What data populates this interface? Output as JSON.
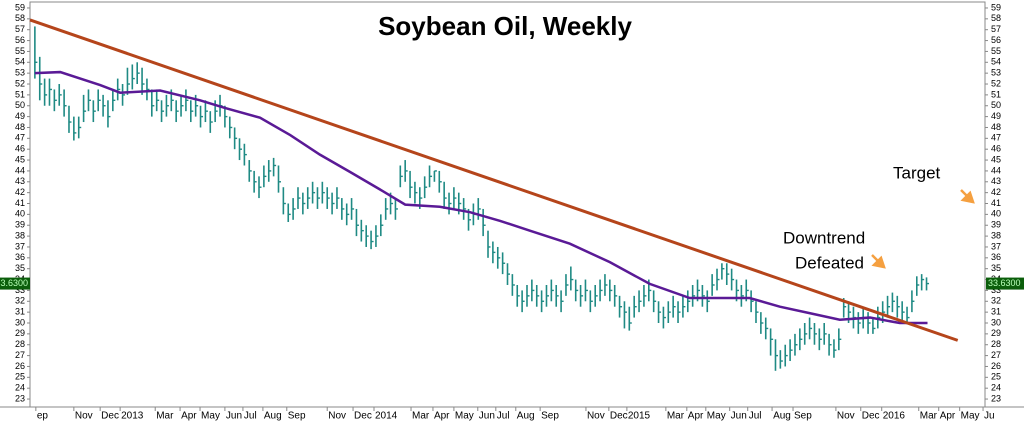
{
  "chart_data": {
    "type": "ohlc",
    "title": "Soybean Oil, Weekly",
    "annotations": [
      "Target",
      "Downtrend",
      "Defeated"
    ],
    "ylim": [
      22.36,
      59.55
    ],
    "yticks": [
      23,
      24,
      25,
      26,
      27,
      28,
      29,
      30,
      31,
      32,
      33,
      34,
      35,
      36,
      37,
      38,
      39,
      40,
      41,
      42,
      43,
      44,
      45,
      46,
      47,
      48,
      49,
      50,
      51,
      52,
      53,
      54,
      55,
      56,
      57,
      58,
      59
    ],
    "xlim": [
      -1,
      195
    ],
    "xticks": [
      {
        "value": 0.2,
        "label": "ep"
      },
      {
        "value": 8.0,
        "label": "Nov"
      },
      {
        "value": 13.4,
        "label": "Dec"
      },
      {
        "value": 17.5,
        "label": "2013"
      },
      {
        "value": 24.7,
        "label": "Mar"
      },
      {
        "value": 29.8,
        "label": "Apr"
      },
      {
        "value": 33.9,
        "label": "May"
      },
      {
        "value": 39.0,
        "label": "Jun"
      },
      {
        "value": 42.7,
        "label": "Jul"
      },
      {
        "value": 46.8,
        "label": "Aug"
      },
      {
        "value": 51.7,
        "label": "Sep"
      },
      {
        "value": 60.0,
        "label": "Nov"
      },
      {
        "value": 65.3,
        "label": "Dec"
      },
      {
        "value": 69.6,
        "label": "2014"
      },
      {
        "value": 77.2,
        "label": "Mar"
      },
      {
        "value": 81.7,
        "label": "Apr"
      },
      {
        "value": 86.0,
        "label": "May"
      },
      {
        "value": 90.9,
        "label": "Jun"
      },
      {
        "value": 94.6,
        "label": "Jul"
      },
      {
        "value": 98.7,
        "label": "Aug"
      },
      {
        "value": 103.7,
        "label": "Sep"
      },
      {
        "value": 113.1,
        "label": "Nov"
      },
      {
        "value": 117.8,
        "label": "Dec"
      },
      {
        "value": 121.5,
        "label": "2015"
      },
      {
        "value": 129.5,
        "label": "Mar"
      },
      {
        "value": 133.8,
        "label": "Apr"
      },
      {
        "value": 137.7,
        "label": "May"
      },
      {
        "value": 142.6,
        "label": "Jun"
      },
      {
        "value": 146.3,
        "label": "Jul"
      },
      {
        "value": 151.3,
        "label": "Aug"
      },
      {
        "value": 155.6,
        "label": "Sep"
      },
      {
        "value": 164.4,
        "label": "Nov"
      },
      {
        "value": 169.5,
        "label": "Dec"
      },
      {
        "value": 173.8,
        "label": "2016"
      },
      {
        "value": 181.4,
        "label": "Mar"
      },
      {
        "value": 185.5,
        "label": "Apr"
      },
      {
        "value": 189.8,
        "label": "May"
      },
      {
        "value": 194.6,
        "label": "Ju"
      }
    ],
    "bars": {
      "color": "#1f8a84",
      "high": [
        57.3,
        54.5,
        52.5,
        52.5,
        51.5,
        52.0,
        51.5,
        50.0,
        49.0,
        49.0,
        51.0,
        51.5,
        50.5,
        51.5,
        51.0,
        50.5,
        51.5,
        52.5,
        52.0,
        53.5,
        53.8,
        54.0,
        53.5,
        52.5,
        51.5,
        51.5,
        50.5,
        51.0,
        51.5,
        50.5,
        51.0,
        51.5,
        50.5,
        51.0,
        50.0,
        50.5,
        49.5,
        50.5,
        51.0,
        50.0,
        49.0,
        48.0,
        47.0,
        46.5,
        45.0,
        44.0,
        43.5,
        44.5,
        45.0,
        45.2,
        44.5,
        42.5,
        41.0,
        41.5,
        42.5,
        42.0,
        42.5,
        43.0,
        42.5,
        43.0,
        42.5,
        42.0,
        42.5,
        41.5,
        41.0,
        41.5,
        40.5,
        39.5,
        39.0,
        38.5,
        39.0,
        40.0,
        41.5,
        42.0,
        41.5,
        44.5,
        45.0,
        44.0,
        43.0,
        42.5,
        43.5,
        44.5,
        44.0,
        44.0,
        43.0,
        42.0,
        42.5,
        42.0,
        41.5,
        40.5,
        41.0,
        41.5,
        40.5,
        38.5,
        37.5,
        37.0,
        36.5,
        35.5,
        34.5,
        33.5,
        33.0,
        33.5,
        34.0,
        33.5,
        33.0,
        33.5,
        34.0,
        33.5,
        33.0,
        34.5,
        35.2,
        34.0,
        33.5,
        34.0,
        33.0,
        33.5,
        34.0,
        34.5,
        34.0,
        33.5,
        32.5,
        32.0,
        31.5,
        32.5,
        33.0,
        33.5,
        34.0,
        33.0,
        32.0,
        31.5,
        32.0,
        32.5,
        32.0,
        32.5,
        33.0,
        33.5,
        34.0,
        33.5,
        33.0,
        34.5,
        35.0,
        35.5,
        35.5,
        35.0,
        34.0,
        33.5,
        34.0,
        33.0,
        32.0,
        31.0,
        30.5,
        29.5,
        28.5,
        27.5,
        28.0,
        28.5,
        29.0,
        29.5,
        30.0,
        30.5,
        30.0,
        29.5,
        30.0,
        29.0,
        28.5,
        29.5,
        32.3,
        32.0,
        31.5,
        31.0,
        31.5,
        31.0,
        30.5,
        31.5,
        32.0,
        32.5,
        32.8,
        32.5,
        32.0,
        31.5,
        33.0,
        34.3,
        34.5,
        34.2
      ],
      "low": [
        52.5,
        50.5,
        50.0,
        50.0,
        49.5,
        50.0,
        49.0,
        47.5,
        46.8,
        47.0,
        48.5,
        49.5,
        48.5,
        49.5,
        49.0,
        48.0,
        49.5,
        50.5,
        50.0,
        51.0,
        51.5,
        52.0,
        51.0,
        50.5,
        49.0,
        49.5,
        48.5,
        49.0,
        49.5,
        48.5,
        49.0,
        49.5,
        48.5,
        49.0,
        48.0,
        48.5,
        47.5,
        48.5,
        49.0,
        48.0,
        47.0,
        46.0,
        45.0,
        44.5,
        43.0,
        42.0,
        41.5,
        42.5,
        43.0,
        43.5,
        42.0,
        40.0,
        39.3,
        39.5,
        40.5,
        40.0,
        40.5,
        41.0,
        40.5,
        41.0,
        40.5,
        40.0,
        40.5,
        39.5,
        39.0,
        39.5,
        38.0,
        37.5,
        37.0,
        36.8,
        37.0,
        38.0,
        39.5,
        40.0,
        39.5,
        42.5,
        43.0,
        41.5,
        41.0,
        40.5,
        41.5,
        42.5,
        43.0,
        42.0,
        40.5,
        40.0,
        40.5,
        40.0,
        39.5,
        38.5,
        39.0,
        39.5,
        38.0,
        36.0,
        35.5,
        35.0,
        34.5,
        33.5,
        32.5,
        31.5,
        31.0,
        31.5,
        32.0,
        31.5,
        31.0,
        31.5,
        32.0,
        31.5,
        31.0,
        32.5,
        33.0,
        32.0,
        31.5,
        32.0,
        31.0,
        31.5,
        32.0,
        32.5,
        32.0,
        31.5,
        30.5,
        29.5,
        29.3,
        30.5,
        31.0,
        31.5,
        32.0,
        31.0,
        30.0,
        29.5,
        30.0,
        30.5,
        30.0,
        30.5,
        31.0,
        31.5,
        32.0,
        31.5,
        31.0,
        32.5,
        33.0,
        34.0,
        33.5,
        33.0,
        32.0,
        31.5,
        32.0,
        31.0,
        30.0,
        29.0,
        28.5,
        27.0,
        25.6,
        25.8,
        26.0,
        26.5,
        27.0,
        27.5,
        28.0,
        28.5,
        28.0,
        27.5,
        28.0,
        27.0,
        26.8,
        27.5,
        30.5,
        30.0,
        29.5,
        29.0,
        29.5,
        29.0,
        29.0,
        29.5,
        30.0,
        30.5,
        31.0,
        30.5,
        30.0,
        30.0,
        31.0,
        32.5,
        33.0,
        33.0
      ],
      "close": [
        54.0,
        52.0,
        51.0,
        51.5,
        50.5,
        51.0,
        50.0,
        48.5,
        47.5,
        48.0,
        49.5,
        50.5,
        49.5,
        50.5,
        50.0,
        49.0,
        50.5,
        51.5,
        51.0,
        52.0,
        52.5,
        53.0,
        52.0,
        51.5,
        50.0,
        50.5,
        49.5,
        50.0,
        50.5,
        49.5,
        50.0,
        50.5,
        49.5,
        50.0,
        49.0,
        49.5,
        48.5,
        49.5,
        50.0,
        49.0,
        48.0,
        47.0,
        46.0,
        45.5,
        44.0,
        43.0,
        42.5,
        43.5,
        44.0,
        44.5,
        43.0,
        41.0,
        40.0,
        40.5,
        41.5,
        41.0,
        41.5,
        42.0,
        41.5,
        42.0,
        41.5,
        41.0,
        41.5,
        40.5,
        40.0,
        40.5,
        39.0,
        38.5,
        38.0,
        37.5,
        38.0,
        39.0,
        40.5,
        41.0,
        40.5,
        43.5,
        44.0,
        42.5,
        42.0,
        41.5,
        42.5,
        43.5,
        44.0,
        43.0,
        41.5,
        41.0,
        41.5,
        41.0,
        40.5,
        39.5,
        40.0,
        40.5,
        39.0,
        37.0,
        36.5,
        36.0,
        35.5,
        34.5,
        33.5,
        32.5,
        32.0,
        32.5,
        33.0,
        32.5,
        32.0,
        32.5,
        33.0,
        32.5,
        32.0,
        33.5,
        34.0,
        33.0,
        32.5,
        33.0,
        32.0,
        32.5,
        33.0,
        33.5,
        33.0,
        32.5,
        31.5,
        31.0,
        30.0,
        31.5,
        32.0,
        32.5,
        33.0,
        32.0,
        31.0,
        30.5,
        31.0,
        31.5,
        31.0,
        31.5,
        32.0,
        32.5,
        33.0,
        32.5,
        32.0,
        33.5,
        34.0,
        35.0,
        34.5,
        34.0,
        33.0,
        32.5,
        33.0,
        32.0,
        31.0,
        30.0,
        29.5,
        28.5,
        27.0,
        26.5,
        27.0,
        27.5,
        28.0,
        28.5,
        29.0,
        29.5,
        29.0,
        28.5,
        29.0,
        28.0,
        27.5,
        28.5,
        31.5,
        31.0,
        30.5,
        30.0,
        30.5,
        30.0,
        29.5,
        30.5,
        31.0,
        31.5,
        32.0,
        31.5,
        31.0,
        30.5,
        32.0,
        33.5,
        34.0,
        33.63
      ]
    },
    "moving_average": {
      "color": "#5a1a96",
      "x": [
        0,
        5.2,
        13.4,
        17.5,
        25.7,
        33.9,
        39,
        46.2,
        52.4,
        58.5,
        64.7,
        70.8,
        76,
        83.1,
        89.3,
        95.5,
        101.6,
        109.8,
        118,
        126.2,
        134.4,
        140.6,
        146.7,
        152.9,
        159.1,
        165.2,
        171.4,
        177.5,
        183.2
      ],
      "values": [
        53.0,
        53.1,
        51.9,
        51.2,
        51.4,
        50.5,
        49.8,
        48.9,
        47.3,
        45.5,
        43.9,
        42.3,
        40.9,
        40.7,
        40.2,
        39.4,
        38.5,
        37.3,
        35.6,
        33.6,
        32.3,
        32.3,
        32.3,
        31.5,
        30.9,
        30.3,
        30.5,
        30.0,
        30.0
      ]
    },
    "trendline": {
      "color": "#b5451b",
      "x": [
        -1,
        189.4
      ],
      "values": [
        57.9,
        28.4
      ]
    },
    "last_price": {
      "value": 33.63,
      "label": "33.6300"
    }
  }
}
